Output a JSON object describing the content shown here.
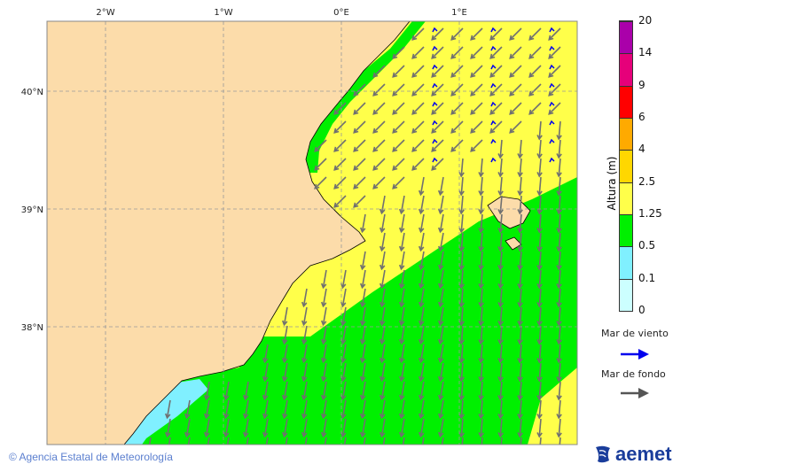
{
  "map": {
    "lon_labels": [
      "2°W",
      "1°W",
      "0°E",
      "1°E"
    ],
    "lat_labels": [
      "40°N",
      "39°N",
      "38°N"
    ],
    "colors": {
      "land": "#fcdcaa",
      "sea_yellow": "#ffff4a",
      "sea_green": "#00f000",
      "sea_cyan": "#80f0ff",
      "wind_sea_arrow": "#0000ee",
      "swell_arrow": "#707070"
    }
  },
  "colorbar": {
    "title": "Altura (m)",
    "ticks": [
      "0",
      "0.1",
      "0.5",
      "1.25",
      "2.5",
      "4",
      "6",
      "9",
      "14",
      "20"
    ],
    "colors": [
      "#ccffff",
      "#80f0ff",
      "#00f000",
      "#ffff4a",
      "#ffd700",
      "#ffaa00",
      "#ff0000",
      "#e6007a",
      "#aa00aa"
    ]
  },
  "legend": {
    "wind_sea": "Mar de viento",
    "swell": "Mar de fondo"
  },
  "footer": {
    "copyright": "© Agencia Estatal de Meteorología",
    "logo": "aemet"
  }
}
